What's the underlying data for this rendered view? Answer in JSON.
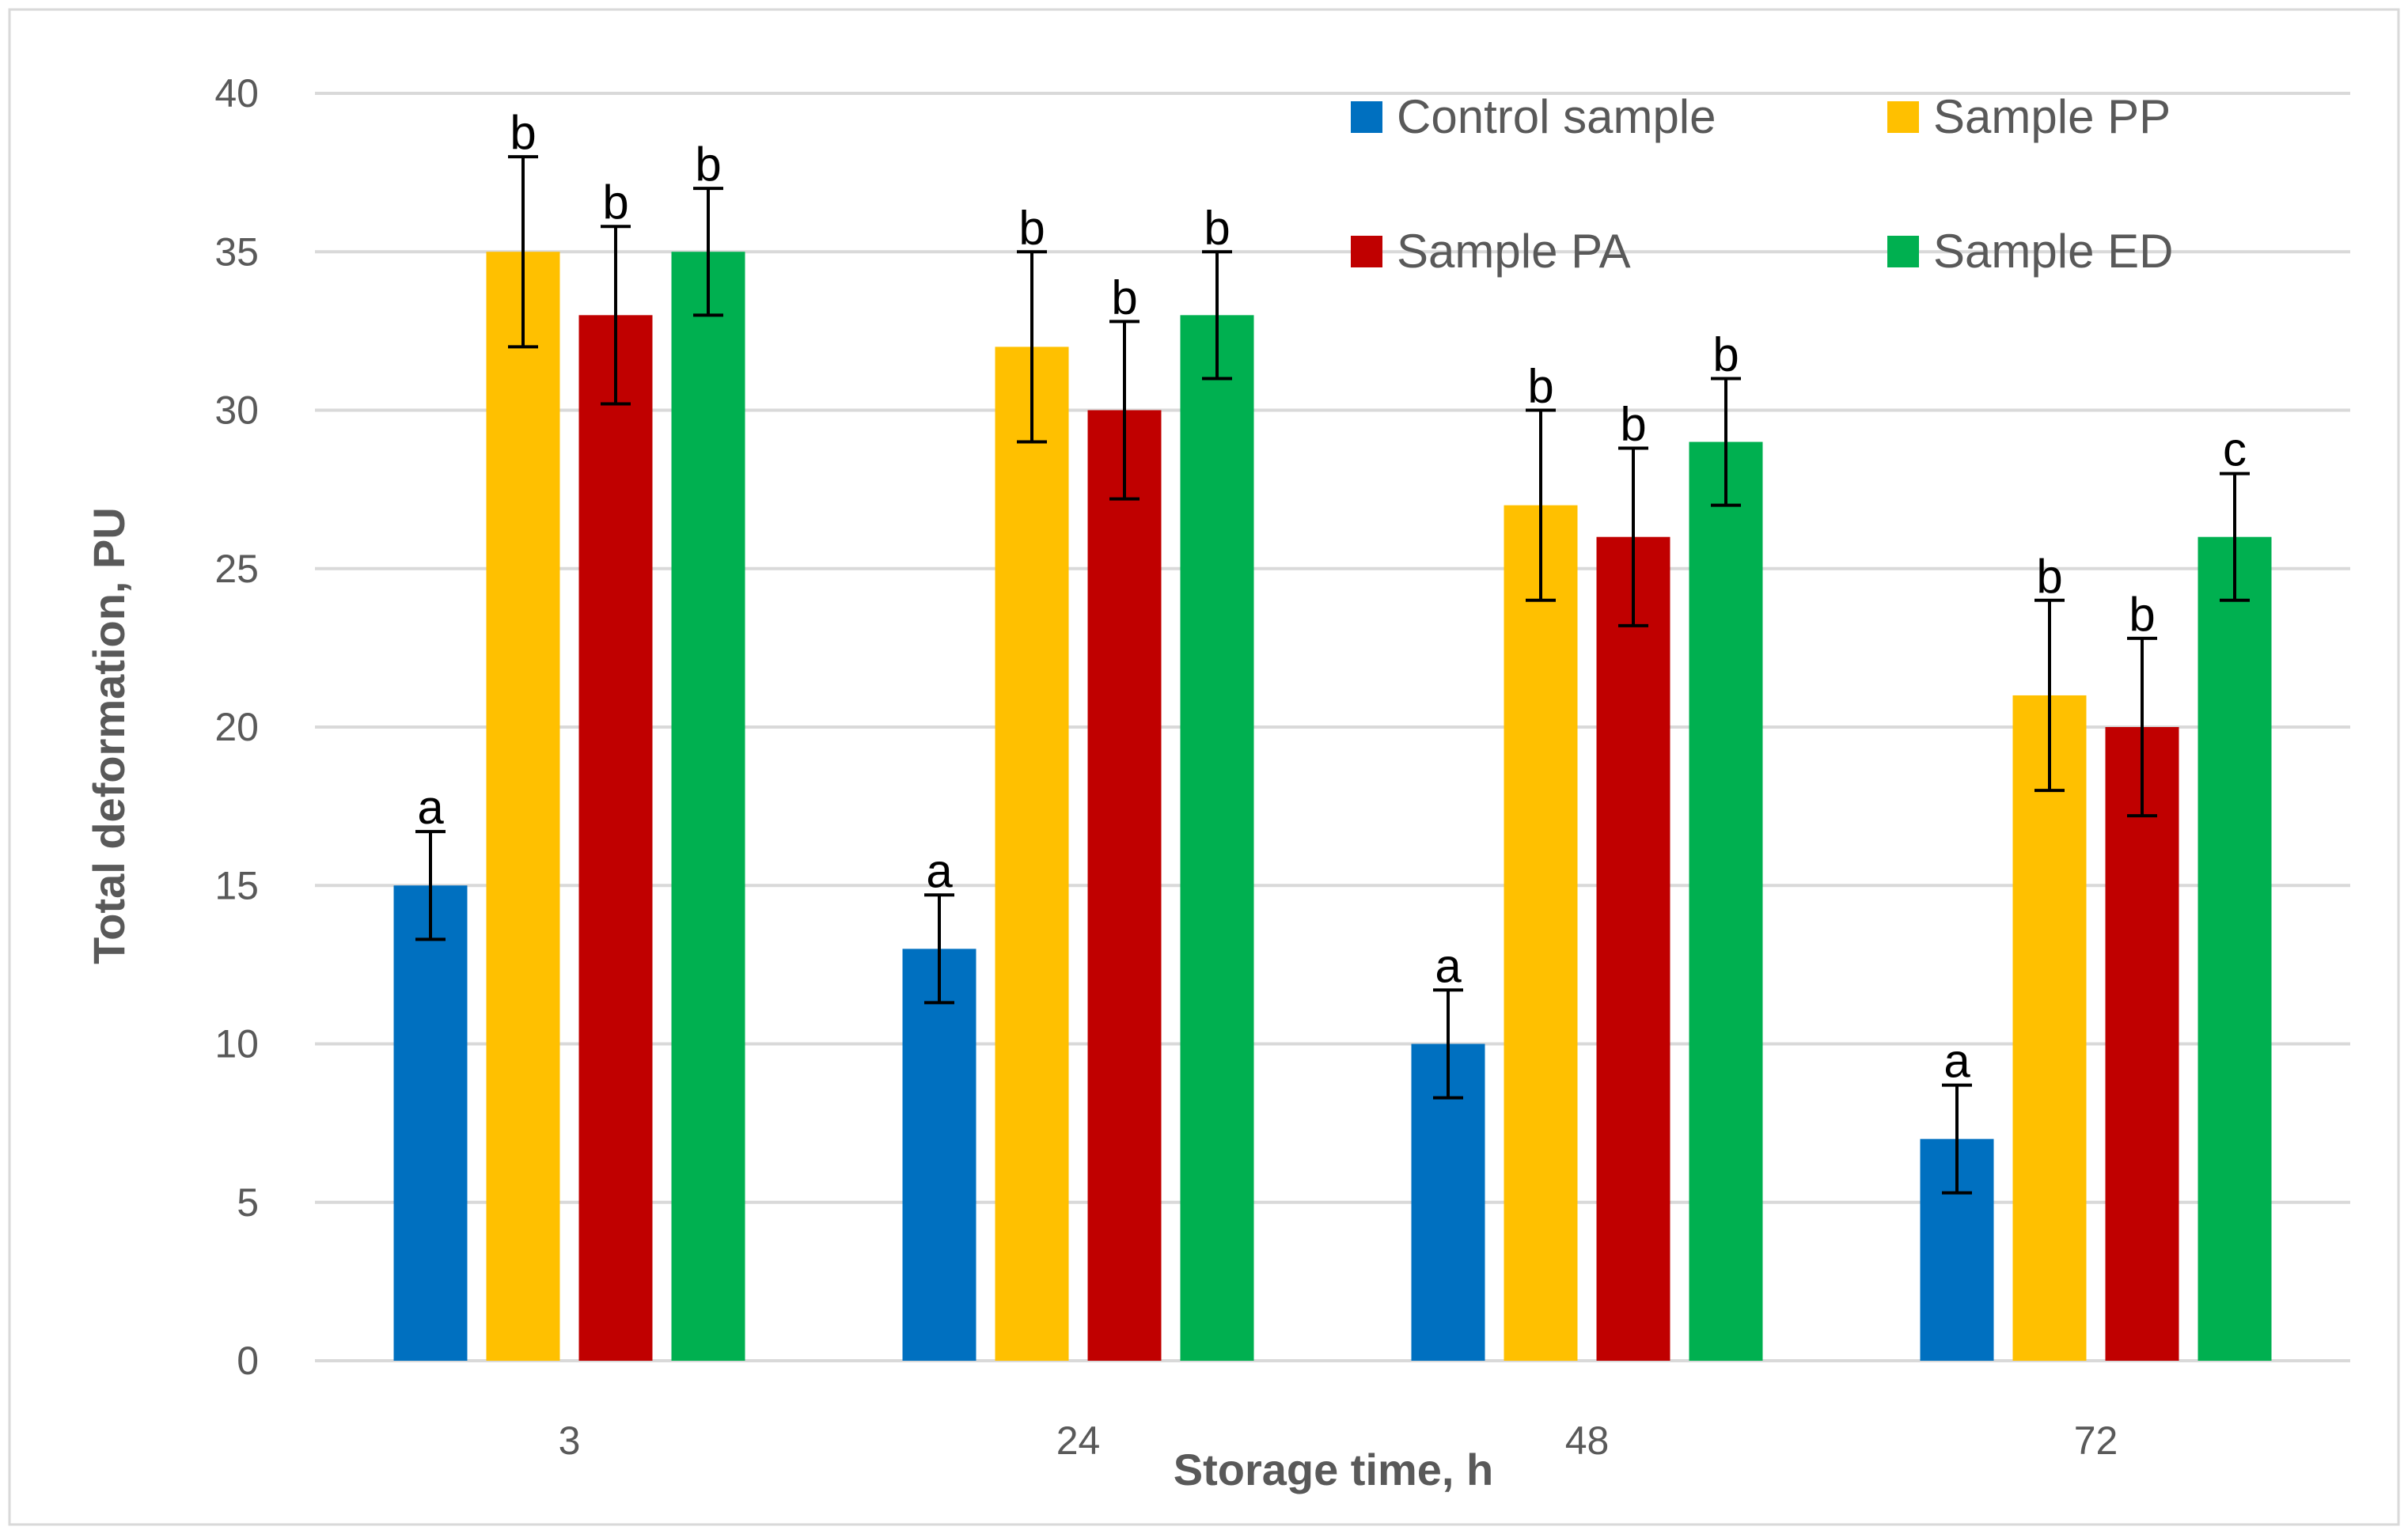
{
  "chart_data": {
    "type": "bar",
    "title": "",
    "xlabel": "Storage time, h",
    "ylabel": "Total deformation, PU",
    "ylim": [
      0,
      40
    ],
    "yticks": [
      0,
      5,
      10,
      15,
      20,
      25,
      30,
      35,
      40
    ],
    "categories": [
      "3",
      "24",
      "48",
      "72"
    ],
    "grid": true,
    "legend_position": "top-right",
    "series": [
      {
        "name": "Control sample",
        "color": "#0070C0",
        "values": [
          15,
          13,
          10,
          7
        ],
        "errors": [
          1.7,
          1.7,
          1.7,
          1.7
        ],
        "significance": [
          "a",
          "a",
          "a",
          "a"
        ]
      },
      {
        "name": "Sample PP",
        "color": "#FFC000",
        "values": [
          35,
          32,
          27,
          21
        ],
        "errors": [
          3,
          3,
          3,
          3
        ],
        "significance": [
          "b",
          "b",
          "b",
          "b"
        ]
      },
      {
        "name": "Sample PA",
        "color": "#C00000",
        "values": [
          33,
          30,
          26,
          20
        ],
        "errors": [
          2.8,
          2.8,
          2.8,
          2.8
        ],
        "significance": [
          "b",
          "b",
          "b",
          "b"
        ]
      },
      {
        "name": "Sample ED",
        "color": "#00B050",
        "values": [
          35,
          33,
          29,
          26
        ],
        "errors": [
          2,
          2,
          2,
          2
        ],
        "significance": [
          "b",
          "b",
          "b",
          "c"
        ]
      }
    ]
  }
}
